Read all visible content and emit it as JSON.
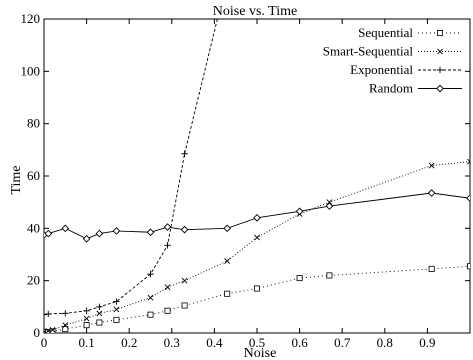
{
  "chart_data": {
    "type": "line",
    "title": "Noise vs. Time",
    "xlabel": "Noise",
    "ylabel": "Time",
    "xlim": [
      0,
      1.0
    ],
    "ylim": [
      0,
      120
    ],
    "xticks": [
      0,
      0.1,
      0.2,
      0.3,
      0.4,
      0.5,
      0.6,
      0.7,
      0.8,
      0.9
    ],
    "xtick_labels": [
      "0",
      "0.1",
      "0.2",
      "0.3",
      "0.4",
      "0.5",
      "0.6",
      "0.7",
      "0.8",
      "0.9"
    ],
    "yticks": [
      0,
      20,
      40,
      60,
      80,
      100,
      120
    ],
    "ytick_labels": [
      "0",
      "20",
      "40",
      "60",
      "80",
      "100",
      "120"
    ],
    "grid": false,
    "legend_position": "top-right",
    "series": [
      {
        "name": "Sequential",
        "marker": "square",
        "dash": "1,3",
        "x": [
          0,
          0.01,
          0.02,
          0.05,
          0.1,
          0.13,
          0.17,
          0.25,
          0.29,
          0.33,
          0.43,
          0.5,
          0.6,
          0.67,
          0.91,
          1.0
        ],
        "y": [
          0.3,
          0.4,
          0.6,
          1.5,
          3,
          4,
          5,
          7,
          8.5,
          10.5,
          15,
          17,
          21,
          22,
          24.5,
          25.5
        ]
      },
      {
        "name": "Smart-Sequential",
        "marker": "x",
        "dash": "1,2",
        "x": [
          0,
          0.01,
          0.02,
          0.05,
          0.1,
          0.13,
          0.17,
          0.25,
          0.29,
          0.33,
          0.43,
          0.5,
          0.6,
          0.67,
          0.91,
          1.0
        ],
        "y": [
          0.5,
          0.8,
          1.2,
          3,
          5.5,
          7.5,
          9,
          13.5,
          17.5,
          20,
          27.5,
          36.5,
          45.5,
          50,
          64,
          65.5
        ]
      },
      {
        "name": "Exponential",
        "marker": "plus",
        "dash": "3,2",
        "x": [
          0,
          0.01,
          0.05,
          0.1,
          0.13,
          0.17,
          0.25,
          0.29,
          0.33,
          0.407
        ],
        "y": [
          7,
          7.3,
          7.5,
          8.5,
          10,
          12,
          22.5,
          33.5,
          68.5,
          120
        ]
      },
      {
        "name": "Random",
        "marker": "diamond",
        "dash": "",
        "x": [
          0,
          0.01,
          0.05,
          0.1,
          0.13,
          0.17,
          0.25,
          0.29,
          0.33,
          0.43,
          0.5,
          0.6,
          0.67,
          0.91,
          1.0
        ],
        "y": [
          37.5,
          38,
          40,
          36,
          38,
          39,
          38.5,
          40.5,
          39.5,
          40,
          44,
          46.5,
          48.5,
          53.5,
          51.5
        ]
      }
    ]
  }
}
